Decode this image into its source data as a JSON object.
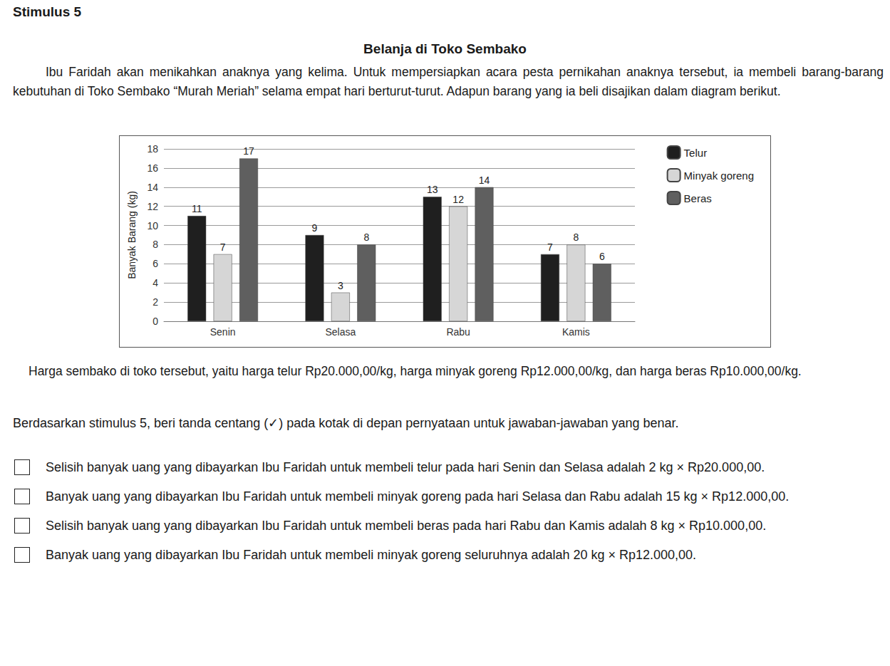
{
  "page": {
    "header": "Stimulus 5",
    "title": "Belanja di Toko Sembako",
    "intro": "Ibu Faridah akan menikahkan anaknya yang kelima. Untuk mempersiapkan acara pesta pernikahan anaknya tersebut, ia membeli barang-barang kebutuhan di Toko Sembako “Murah Meriah” selama empat hari berturut-turut. Adapun barang yang ia beli disajikan dalam diagram berikut.",
    "prices": "Harga sembako di toko tersebut, yaitu harga telur Rp20.000,00/kg, harga minyak goreng Rp12.000,00/kg, dan harga beras Rp10.000,00/kg.",
    "question": "Berdasarkan stimulus 5, beri tanda centang (✓) pada kotak di depan pernyataan untuk jawaban-jawaban yang benar.",
    "statements": [
      "Selisih banyak uang yang dibayarkan Ibu Faridah untuk membeli telur pada hari Senin dan Selasa adalah 2 kg × Rp20.000,00.",
      "Banyak uang yang dibayarkan Ibu Faridah untuk membeli minyak goreng pada hari Selasa dan Rabu adalah 15 kg × Rp12.000,00.",
      "Selisih banyak uang yang dibayarkan Ibu Faridah untuk membeli beras pada hari Rabu dan Kamis adalah 8 kg × Rp10.000,00.",
      "Banyak uang yang dibayarkan Ibu Faridah untuk membeli minyak goreng seluruhnya adalah 20 kg × Rp12.000,00."
    ]
  },
  "chart_data": {
    "type": "bar",
    "y_label": "Banyak Barang (kg)",
    "categories": [
      "Senin",
      "Selasa",
      "Rabu",
      "Kamis"
    ],
    "series": [
      {
        "name": "Telur",
        "color": "#1f1f1f",
        "values": [
          11,
          9,
          13,
          7
        ]
      },
      {
        "name": "Minyak goreng",
        "color": "#d6d6d6",
        "values": [
          7,
          3,
          12,
          8
        ]
      },
      {
        "name": "Beras",
        "color": "#5f5f5f",
        "values": [
          17,
          8,
          14,
          6
        ]
      }
    ],
    "ylim": [
      0,
      18
    ],
    "yticks": [
      0,
      2,
      4,
      6,
      8,
      10,
      12,
      14,
      16,
      18
    ],
    "grid": true,
    "legend": "top-right",
    "data_labels": true
  }
}
